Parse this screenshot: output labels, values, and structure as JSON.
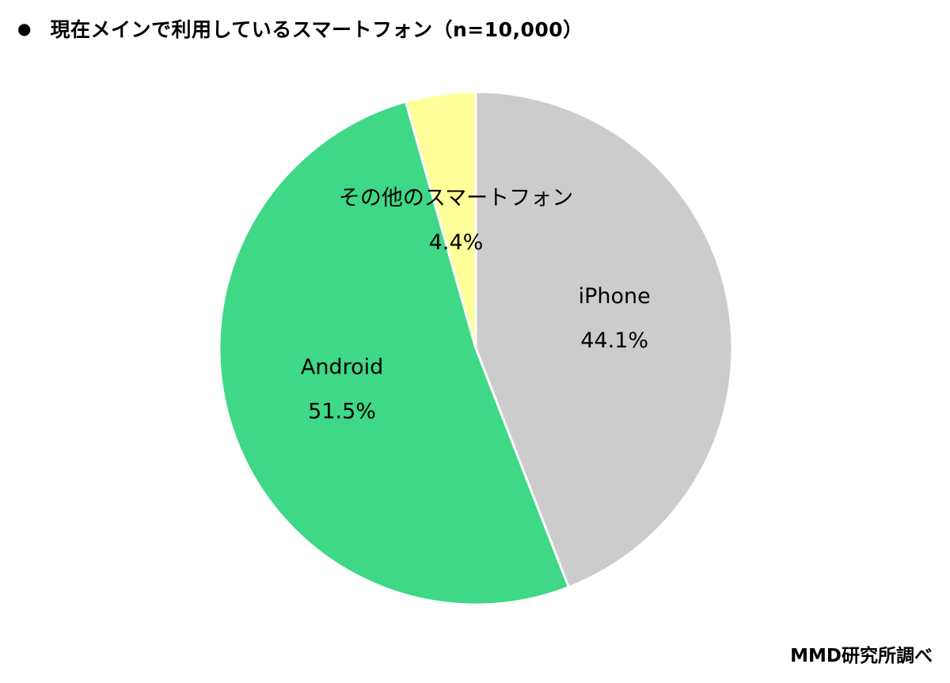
{
  "header": {
    "bullet": "●",
    "title": "現在メインで利用しているスマートフォン（n=10,000）"
  },
  "footer": {
    "source": "MMD研究所調べ"
  },
  "chart_data": {
    "type": "pie",
    "title": "現在メインで利用しているスマートフォン（n=10,000）",
    "start": "12 o'clock, clockwise",
    "slices": [
      {
        "label": "iPhone",
        "value": 44.1,
        "display": "44.1%",
        "color": "#cccccc"
      },
      {
        "label": "Android",
        "value": 51.5,
        "display": "51.5%",
        "color": "#3ed886"
      },
      {
        "label": "その他のスマートフォン",
        "value": 4.4,
        "display": "4.4%",
        "color": "#ffff99"
      }
    ]
  }
}
